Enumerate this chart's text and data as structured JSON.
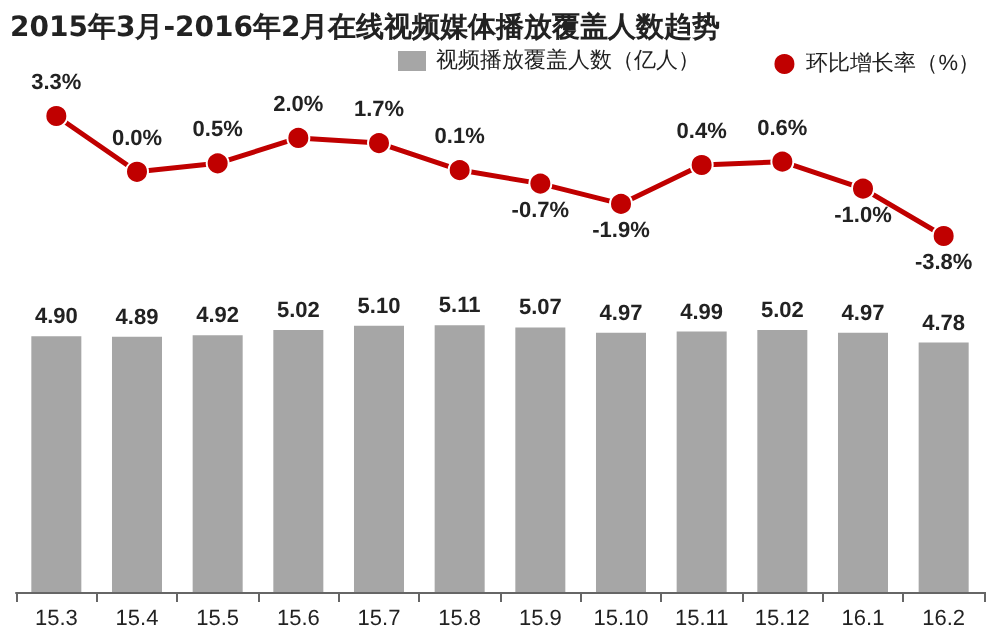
{
  "chart_data": [
    {
      "type": "line",
      "title": "2015年3月-2016年2月在线视频媒体播放覆盖人数趋势",
      "categories": [
        "15.3",
        "15.4",
        "15.5",
        "15.6",
        "15.7",
        "15.8",
        "15.9",
        "15.10",
        "15.11",
        "15.12",
        "16.1",
        "16.2"
      ],
      "series": [
        {
          "name": "环比增长率（%）",
          "color": "#c00000",
          "values": [
            3.3,
            0.0,
            0.5,
            2.0,
            1.7,
            0.1,
            -0.7,
            -1.9,
            0.4,
            0.6,
            -1.0,
            -3.8
          ],
          "value_labels": [
            "3.3%",
            "0.0%",
            "0.5%",
            "2.0%",
            "1.7%",
            "0.1%",
            "-0.7%",
            "-1.9%",
            "0.4%",
            "0.6%",
            "-1.0%",
            "-3.8%"
          ]
        }
      ],
      "legend": "top right",
      "marker": "circle",
      "line_style": "solid",
      "tick_labels": false
    },
    {
      "type": "bar",
      "categories": [
        "15.3",
        "15.4",
        "15.5",
        "15.6",
        "15.7",
        "15.8",
        "15.9",
        "15.10",
        "15.11",
        "15.12",
        "16.1",
        "16.2"
      ],
      "series": [
        {
          "name": "视频播放覆盖人数（亿人）",
          "color": "#a6a6a6",
          "values": [
            4.9,
            4.89,
            4.92,
            5.02,
            5.1,
            5.11,
            5.07,
            4.97,
            4.99,
            5.02,
            4.97,
            4.78
          ],
          "value_labels": [
            "4.90",
            "4.89",
            "4.92",
            "5.02",
            "5.10",
            "5.11",
            "5.07",
            "4.97",
            "4.99",
            "5.02",
            "4.97",
            "4.78"
          ]
        }
      ],
      "legend": "top"
    }
  ]
}
